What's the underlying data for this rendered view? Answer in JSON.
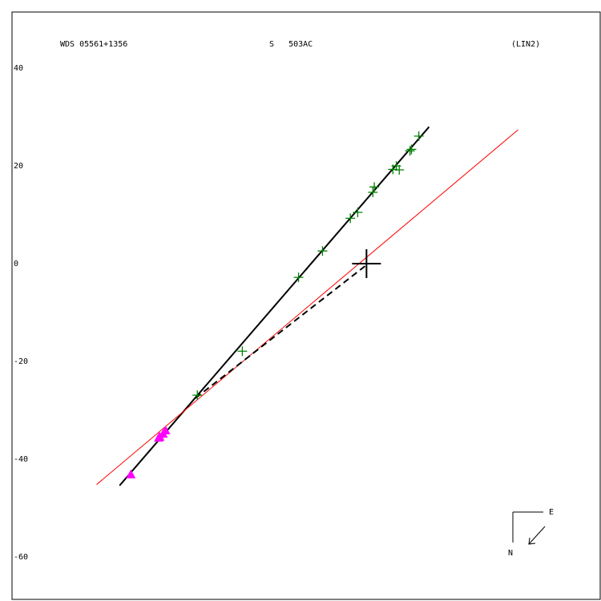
{
  "chart_data": {
    "type": "scatter",
    "texts": [
      "WDS 05561+1356",
      "S   503AC",
      "(LIN2)"
    ],
    "compass": [
      "E",
      "N"
    ],
    "xlim": [
      -72.5,
      47.8
    ],
    "ylim": [
      -68.7,
      51.5
    ],
    "yticks": [
      40,
      20,
      0,
      -20,
      -40,
      -60
    ],
    "series": [
      {
        "color": "#008000",
        "marker": "plus",
        "x": [
          10.7,
          9.2,
          8.9,
          6.1,
          5.4,
          6.7,
          1.6,
          1.3,
          -1.8,
          -3.3,
          -9.0,
          -13.9,
          -25.4,
          -34.6
        ],
        "y": [
          26.1,
          23.4,
          23.1,
          20.0,
          19.3,
          19.2,
          15.7,
          14.6,
          10.5,
          9.3,
          2.6,
          -2.8,
          -17.9,
          -26.9
        ]
      },
      {
        "color": "#ff00ff",
        "marker": "triangle",
        "x": [
          -41.1,
          -41.6,
          -42.3,
          -42.5,
          -48.2
        ],
        "y": [
          -34.1,
          -34.8,
          -35.4,
          -35.6,
          -43.1
        ]
      }
    ],
    "lines": [
      {
        "color": "#000000",
        "dash": false,
        "width": 2,
        "x": [
          -50.5,
          12.8
        ],
        "y": [
          -45.4,
          28.0
        ]
      },
      {
        "color": "#ff0000",
        "dash": false,
        "width": 1,
        "x": [
          -55.2,
          31.0
        ],
        "y": [
          -45.2,
          27.4
        ]
      },
      {
        "color": "#000000",
        "dash": true,
        "width": 2,
        "x": [
          -0.3,
          -35.6
        ],
        "y": [
          -0.5,
          -28.0
        ]
      }
    ],
    "primary": {
      "x": 0,
      "y": 0,
      "color": "#000000"
    }
  }
}
